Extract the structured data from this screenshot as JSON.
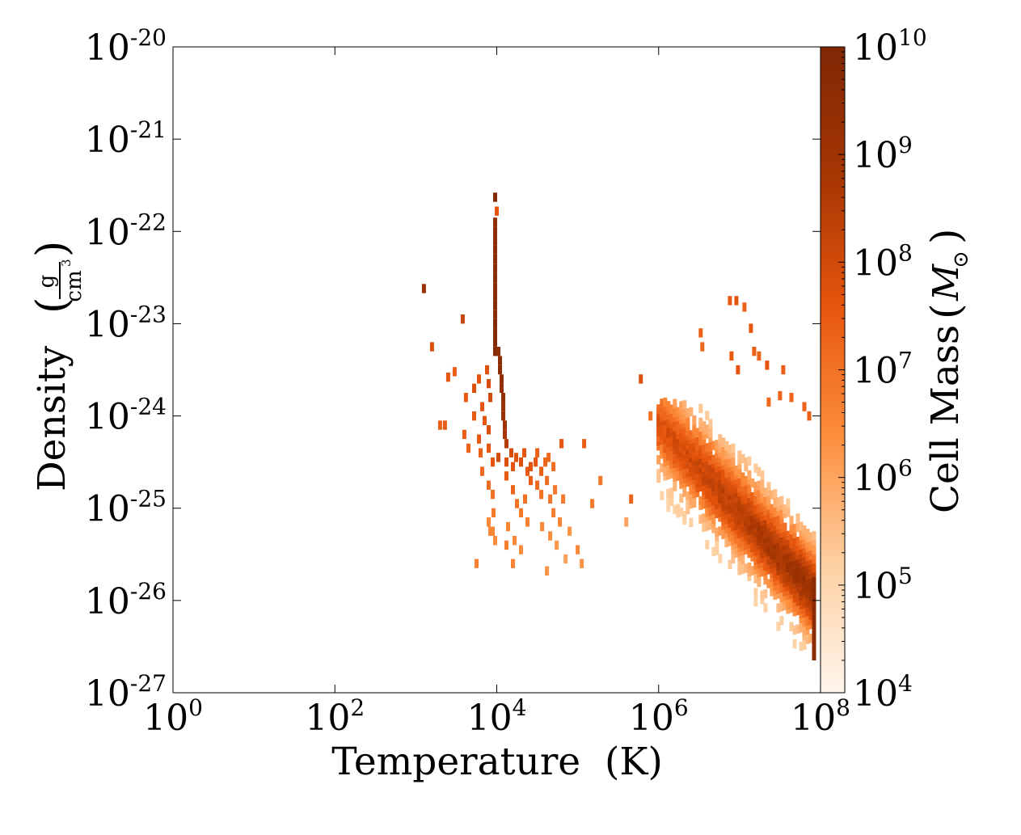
{
  "chart_data": {
    "type": "heatmap",
    "title": "",
    "xlabel": "Temperature  (K)",
    "ylabel": "Density",
    "ylabel_unit_num": "g",
    "ylabel_unit_den": "cm",
    "ylabel_unit_den_exp": "3",
    "colorbar_label": "Cell Mass",
    "colorbar_unit": "M",
    "colorbar_unit_sub": "⊙",
    "x_scale": "log",
    "y_scale": "log",
    "xlim_log10": [
      0,
      8
    ],
    "ylim_log10": [
      -27,
      -20
    ],
    "clim_log10": [
      4,
      10
    ],
    "colormap": [
      "#fff5eb",
      "#fdd0a2",
      "#fd8d3c",
      "#e6550d",
      "#a63603",
      "#7f2704"
    ],
    "x_ticks": [
      {
        "base": "10",
        "exp": "0"
      },
      {
        "base": "10",
        "exp": "2"
      },
      {
        "base": "10",
        "exp": "4"
      },
      {
        "base": "10",
        "exp": "6"
      },
      {
        "base": "10",
        "exp": "8"
      }
    ],
    "y_ticks": [
      {
        "base": "10",
        "exp": "-20"
      },
      {
        "base": "10",
        "exp": "-21"
      },
      {
        "base": "10",
        "exp": "-22"
      },
      {
        "base": "10",
        "exp": "-23"
      },
      {
        "base": "10",
        "exp": "-24"
      },
      {
        "base": "10",
        "exp": "-25"
      },
      {
        "base": "10",
        "exp": "-26"
      },
      {
        "base": "10",
        "exp": "-27"
      }
    ],
    "c_ticks": [
      {
        "base": "10",
        "exp": "10"
      },
      {
        "base": "10",
        "exp": "9"
      },
      {
        "base": "10",
        "exp": "8"
      },
      {
        "base": "10",
        "exp": "7"
      },
      {
        "base": "10",
        "exp": "6"
      },
      {
        "base": "10",
        "exp": "5"
      },
      {
        "base": "10",
        "exp": "4"
      }
    ],
    "tick_values_x": [
      0,
      2,
      4,
      6,
      8
    ],
    "tick_values_y": [
      -20,
      -21,
      -22,
      -23,
      -24,
      -25,
      -26,
      -27
    ],
    "tick_values_c": [
      10,
      9,
      8,
      7,
      6,
      5,
      4
    ],
    "cells_log10": [
      [
        3.98,
        -21.63,
        9.8
      ],
      [
        3.98,
        -21.9,
        9.4
      ],
      [
        4.0,
        -21.78,
        7.6
      ],
      [
        3.98,
        -22.0,
        9.5
      ],
      [
        3.98,
        -22.1,
        9.5
      ],
      [
        3.98,
        -22.2,
        9.6
      ],
      [
        3.98,
        -22.3,
        9.6
      ],
      [
        3.98,
        -22.4,
        9.7
      ],
      [
        3.98,
        -22.5,
        9.7
      ],
      [
        3.98,
        -22.6,
        9.7
      ],
      [
        3.98,
        -22.7,
        9.7
      ],
      [
        3.98,
        -22.8,
        9.7
      ],
      [
        3.98,
        -22.9,
        9.7
      ],
      [
        3.98,
        -23.0,
        9.8
      ],
      [
        3.98,
        -23.1,
        9.8
      ],
      [
        3.98,
        -23.2,
        9.8
      ],
      [
        3.98,
        -23.3,
        9.8
      ],
      [
        4.02,
        -23.3,
        9.5
      ],
      [
        4.04,
        -23.4,
        9.5
      ],
      [
        4.04,
        -23.5,
        9.5
      ],
      [
        4.06,
        -23.6,
        9.4
      ],
      [
        4.06,
        -23.7,
        9.4
      ],
      [
        4.08,
        -23.8,
        9.3
      ],
      [
        4.08,
        -23.9,
        9.2
      ],
      [
        4.08,
        -24.0,
        9.1
      ],
      [
        4.1,
        -24.1,
        9.0
      ],
      [
        4.1,
        -24.2,
        8.8
      ],
      [
        4.12,
        -24.3,
        8.6
      ],
      [
        3.58,
        -22.95,
        8.2
      ],
      [
        3.1,
        -22.62,
        9.1
      ],
      [
        3.2,
        -23.25,
        7.8
      ],
      [
        3.4,
        -23.58,
        7.6
      ],
      [
        3.48,
        -23.52,
        7.4
      ],
      [
        3.62,
        -23.8,
        7.5
      ],
      [
        3.72,
        -23.7,
        7.8
      ],
      [
        3.78,
        -23.6,
        7.6
      ],
      [
        3.88,
        -23.5,
        7.7
      ],
      [
        3.9,
        -23.65,
        7.9
      ],
      [
        3.82,
        -23.9,
        7.6
      ],
      [
        3.92,
        -23.8,
        8.0
      ],
      [
        3.72,
        -24.0,
        7.5
      ],
      [
        3.85,
        -24.05,
        7.6
      ],
      [
        3.9,
        -24.15,
        7.8
      ],
      [
        3.6,
        -24.2,
        7.4
      ],
      [
        3.78,
        -24.25,
        7.5
      ],
      [
        3.65,
        -24.35,
        7.3
      ],
      [
        3.3,
        -24.1,
        7.4
      ],
      [
        3.36,
        -24.1,
        7.5
      ],
      [
        3.8,
        -24.4,
        7.4
      ],
      [
        3.9,
        -24.35,
        7.6
      ],
      [
        3.95,
        -24.5,
        7.6
      ],
      [
        3.82,
        -24.6,
        7.2
      ],
      [
        3.9,
        -24.75,
        7.1
      ],
      [
        3.95,
        -24.85,
        7.0
      ],
      [
        3.96,
        -25.05,
        6.8
      ],
      [
        3.9,
        -25.15,
        6.5
      ],
      [
        3.95,
        -25.25,
        6.6
      ],
      [
        3.98,
        -25.35,
        6.4
      ],
      [
        4.02,
        -24.45,
        8.0
      ],
      [
        4.12,
        -24.5,
        7.8
      ],
      [
        4.18,
        -24.4,
        7.9
      ],
      [
        4.2,
        -24.55,
        7.6
      ],
      [
        4.24,
        -24.45,
        7.7
      ],
      [
        4.3,
        -24.5,
        7.8
      ],
      [
        4.34,
        -24.4,
        7.6
      ],
      [
        4.38,
        -24.6,
        7.5
      ],
      [
        4.42,
        -24.55,
        7.7
      ],
      [
        4.48,
        -24.5,
        7.6
      ],
      [
        4.5,
        -24.4,
        7.4
      ],
      [
        4.55,
        -24.6,
        7.4
      ],
      [
        4.6,
        -24.5,
        7.3
      ],
      [
        4.64,
        -24.45,
        7.2
      ],
      [
        4.7,
        -24.55,
        7.1
      ],
      [
        4.42,
        -24.7,
        7.4
      ],
      [
        4.5,
        -24.75,
        7.2
      ],
      [
        4.55,
        -24.85,
        7.0
      ],
      [
        4.62,
        -24.7,
        7.1
      ],
      [
        4.66,
        -24.9,
        6.9
      ],
      [
        4.72,
        -24.8,
        6.9
      ],
      [
        4.7,
        -25.05,
        6.7
      ],
      [
        4.78,
        -25.15,
        6.6
      ],
      [
        4.82,
        -24.9,
        6.8
      ],
      [
        4.35,
        -24.9,
        7.0
      ],
      [
        4.3,
        -25.05,
        6.8
      ],
      [
        4.38,
        -25.15,
        6.7
      ],
      [
        4.12,
        -24.65,
        7.5
      ],
      [
        4.2,
        -24.8,
        7.3
      ],
      [
        4.25,
        -24.95,
        7.0
      ],
      [
        4.14,
        -25.2,
        6.6
      ],
      [
        4.22,
        -25.35,
        6.5
      ],
      [
        4.3,
        -25.45,
        6.4
      ],
      [
        4.12,
        -25.4,
        6.7
      ],
      [
        4.56,
        -25.2,
        6.5
      ],
      [
        4.66,
        -25.3,
        6.4
      ],
      [
        4.74,
        -25.4,
        6.2
      ],
      [
        4.85,
        -25.55,
        6.0
      ],
      [
        4.9,
        -25.25,
        6.3
      ],
      [
        5.0,
        -25.45,
        6.5
      ],
      [
        5.05,
        -25.6,
        6.3
      ],
      [
        5.18,
        -24.95,
        6.8
      ],
      [
        5.28,
        -24.7,
        6.9
      ],
      [
        4.8,
        -24.3,
        7.6
      ],
      [
        5.08,
        -24.3,
        7.4
      ],
      [
        5.66,
        -24.9,
        7.3
      ],
      [
        3.92,
        -25.25,
        6.5
      ],
      [
        4.2,
        -25.6,
        6.6
      ],
      [
        3.75,
        -25.6,
        6.7
      ],
      [
        4.62,
        -25.68,
        6.3
      ],
      [
        5.6,
        -25.15,
        6.0
      ],
      [
        5.9,
        -24.0,
        7.0
      ],
      [
        5.78,
        -23.6,
        7.8
      ],
      [
        6.52,
        -23.1,
        7.3
      ],
      [
        6.54,
        -23.25,
        7.2
      ],
      [
        6.88,
        -22.75,
        7.5
      ],
      [
        6.96,
        -22.75,
        7.6
      ],
      [
        7.06,
        -22.82,
        7.3
      ],
      [
        7.14,
        -23.05,
        7.6
      ],
      [
        6.9,
        -23.35,
        7.5
      ],
      [
        6.98,
        -23.5,
        7.6
      ],
      [
        7.18,
        -23.3,
        7.4
      ],
      [
        7.24,
        -23.35,
        7.3
      ],
      [
        7.34,
        -23.45,
        7.6
      ],
      [
        7.54,
        -23.5,
        7.4
      ],
      [
        7.36,
        -23.85,
        7.2
      ],
      [
        7.5,
        -23.78,
        7.3
      ],
      [
        7.64,
        -23.8,
        7.3
      ],
      [
        7.8,
        -23.9,
        7.3
      ],
      [
        7.86,
        -24.0,
        7.4
      ]
    ]
  }
}
